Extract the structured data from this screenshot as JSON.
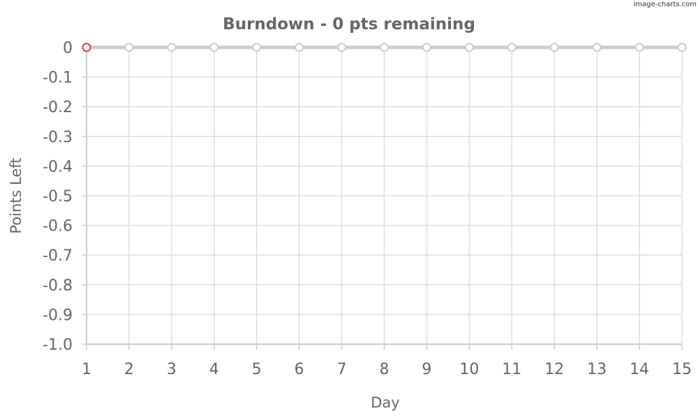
{
  "watermark": "image-charts.com",
  "chart_data": {
    "type": "line",
    "title": "Burndown - 0 pts remaining",
    "xlabel": "Day",
    "ylabel": "Points Left",
    "x": [
      1,
      2,
      3,
      4,
      5,
      6,
      7,
      8,
      9,
      10,
      11,
      12,
      13,
      14,
      15
    ],
    "x_tick_labels": [
      "1",
      "2",
      "3",
      "4",
      "5",
      "6",
      "7",
      "8",
      "9",
      "10",
      "11",
      "12",
      "13",
      "14",
      "15"
    ],
    "y_tick_values": [
      0,
      -0.1,
      -0.2,
      -0.3,
      -0.4,
      -0.5,
      -0.6,
      -0.7,
      -0.8,
      -0.9,
      -1.0
    ],
    "y_tick_labels": [
      "0",
      "-0.1",
      "-0.2",
      "-0.3",
      "-0.4",
      "-0.5",
      "-0.6",
      "-0.7",
      "-0.8",
      "-0.9",
      "-1.0"
    ],
    "xlim": [
      1,
      15
    ],
    "ylim": [
      -1.0,
      0
    ],
    "grid": true,
    "legend": "none",
    "series": [
      {
        "values": [
          0,
          0,
          0,
          0,
          0,
          0,
          0,
          0,
          0,
          0,
          0,
          0,
          0,
          0,
          0
        ],
        "line_color": "#c9ccd1",
        "marker_colors": [
          "#e0393e",
          "#c9ccd1",
          "#c9ccd1",
          "#c9ccd1",
          "#c9ccd1",
          "#c9ccd1",
          "#c9ccd1",
          "#c9ccd1",
          "#c9ccd1",
          "#c9ccd1",
          "#c9ccd1",
          "#c9ccd1",
          "#c9ccd1",
          "#c9ccd1",
          "#c9ccd1"
        ]
      }
    ],
    "colors": {
      "grid": "#dddddd",
      "axis": "#cccccc",
      "text": "#666666"
    }
  }
}
